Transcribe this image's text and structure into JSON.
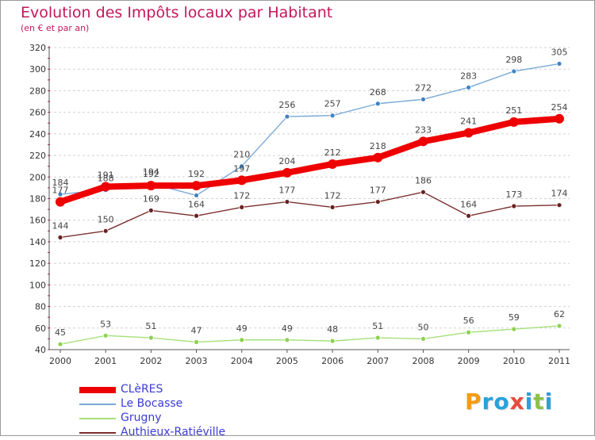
{
  "title": "Evolution des Impôts locaux par Habitant",
  "subtitle": "(en € et par an)",
  "brand": {
    "letters": [
      "P",
      "r",
      "o",
      "x",
      "i",
      "t",
      "i"
    ],
    "colors": [
      "#f39c12",
      "#27a2db",
      "#27a2db",
      "#e74c3c",
      "#27a2db",
      "#8bc34a",
      "#27a2db"
    ]
  },
  "chart_data": {
    "type": "line",
    "title": "Evolution des Impôts locaux par Habitant",
    "subtitle": "(en € et par an)",
    "xlabel": "",
    "ylabel": "",
    "x": [
      "2000",
      "2001",
      "2002",
      "2003",
      "2004",
      "2005",
      "2006",
      "2007",
      "2008",
      "2009",
      "2010",
      "2011"
    ],
    "ylim": [
      40,
      320
    ],
    "yticks": [
      "40",
      "60",
      "80",
      "100",
      "120",
      "140",
      "160",
      "180",
      "200",
      "220",
      "240",
      "260",
      "280",
      "300",
      "320"
    ],
    "grid": "horizontal dashed",
    "legend_position": "bottom-left",
    "series": [
      {
        "name": "CLèRES",
        "color": "#ee0000",
        "emphasis": "thick",
        "values": [
          177,
          191,
          192,
          192,
          197,
          204,
          212,
          218,
          233,
          241,
          251,
          254
        ],
        "labels": [
          "177",
          "191",
          "192",
          "192",
          "197",
          "204",
          "212",
          "218",
          "233",
          "241",
          "251",
          "254"
        ]
      },
      {
        "name": "Le Bocasse",
        "color": "#7aa9d6",
        "marker_color": "#3f83c4",
        "values": [
          184,
          188,
          194,
          183,
          210,
          256,
          257,
          268,
          272,
          283,
          298,
          305
        ],
        "labels": [
          "184",
          "188",
          "194",
          "",
          "210",
          "256",
          "257",
          "268",
          "272",
          "283",
          "298",
          "305"
        ]
      },
      {
        "name": "Grugny",
        "color": "#a6e07a",
        "marker_color": "#8cd24f",
        "values": [
          45,
          53,
          51,
          47,
          49,
          49,
          48,
          51,
          50,
          56,
          59,
          62
        ],
        "labels": [
          "45",
          "53",
          "51",
          "47",
          "49",
          "49",
          "48",
          "51",
          "50",
          "56",
          "59",
          "62"
        ]
      },
      {
        "name": "Authieux-Ratiéville",
        "color": "#7b2e2e",
        "marker_color": "#6a1f1f",
        "values": [
          144,
          150,
          169,
          164,
          172,
          177,
          172,
          177,
          186,
          164,
          173,
          174
        ],
        "labels": [
          "144",
          "150",
          "169",
          "164",
          "172",
          "177",
          "172",
          "177",
          "186",
          "164",
          "173",
          "174"
        ]
      }
    ]
  }
}
